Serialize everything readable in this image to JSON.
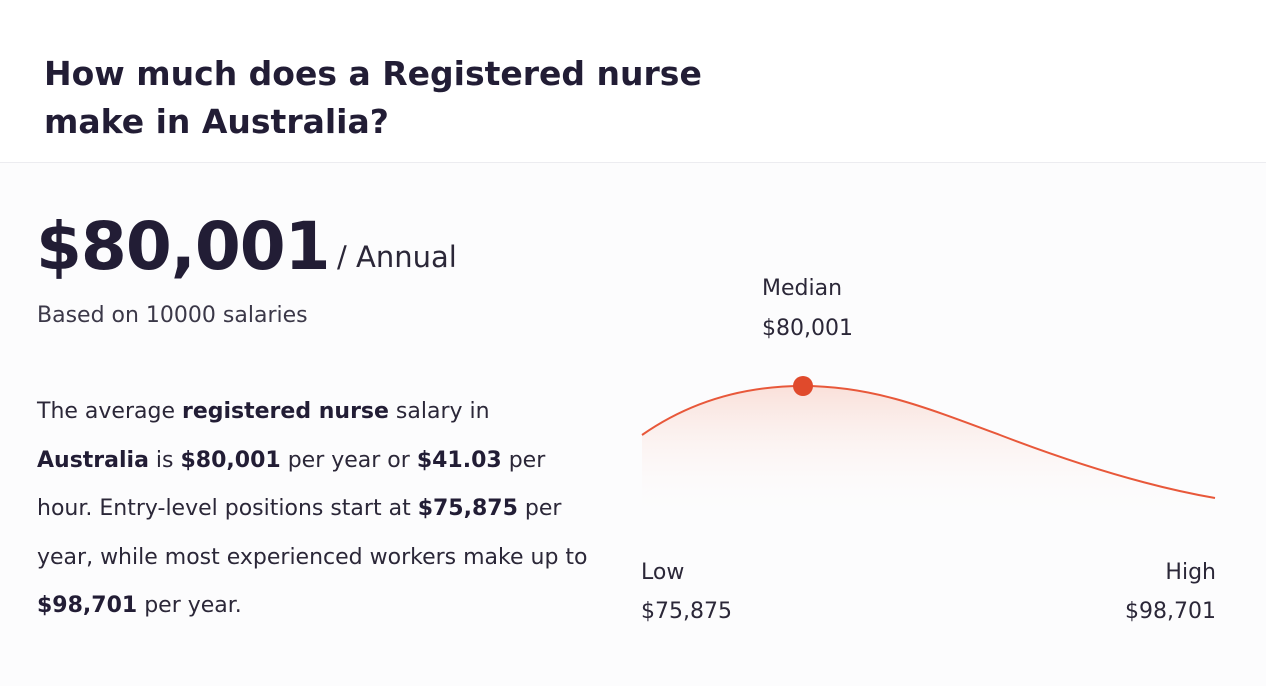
{
  "header": {
    "title_line1": "How much does a Registered nurse",
    "title_line2": "make in Australia?"
  },
  "summary": {
    "salary": "$80,001",
    "period": "/ Annual",
    "basis": "Based on 10000 salaries"
  },
  "description": {
    "p1": "The average ",
    "b1": "registered nurse",
    "p2": " salary in ",
    "b2": "Australia",
    "p3": " is ",
    "b3": "$80,001",
    "p4": " per year or ",
    "b4": "$41.03",
    "p5": " per hour. Entry-level positions start at ",
    "b5": "$75,875",
    "p6": " per year, while most experienced workers make up to ",
    "b6": "$98,701",
    "p7": " per year."
  },
  "distribution": {
    "median_label": "Median",
    "median_value": "$80,001",
    "low_label": "Low",
    "low_value": "$75,875",
    "high_label": "High",
    "high_value": "$98,701",
    "low": 75875,
    "median": 80001,
    "high": 98701,
    "curve_color": "#e8583a",
    "marker_color": "#e04a2c"
  }
}
